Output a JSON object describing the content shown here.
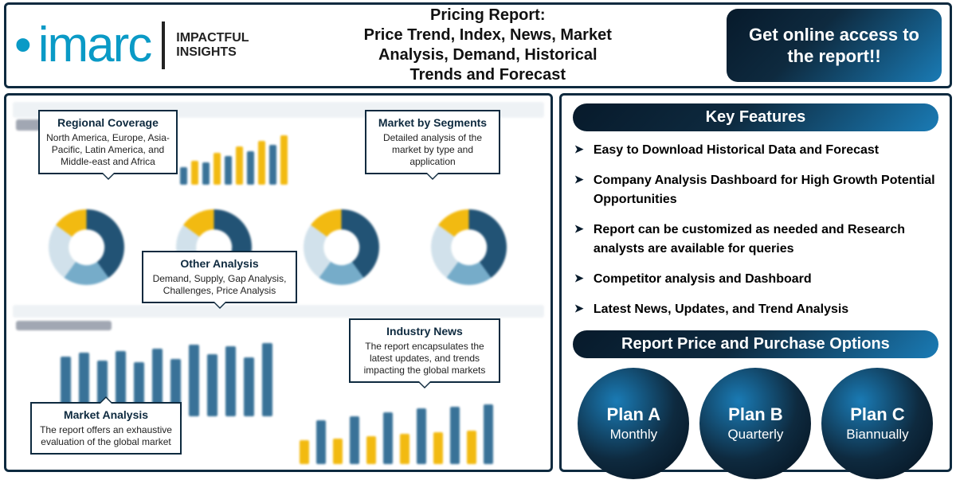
{
  "brand": {
    "logo_text": "imarc",
    "tagline_l1": "IMPACTFUL",
    "tagline_l2": "INSIGHTS"
  },
  "header": {
    "title_l1": "Pricing Report:",
    "title_l2": "Price Trend, Index, News, Market",
    "title_l3": "Analysis, Demand, Historical",
    "title_l4": "Trends and Forecast",
    "cta": "Get online access to the report!!"
  },
  "colors": {
    "border": "#0e2a3f",
    "accent": "#1a7bb5",
    "brand_blue": "#0a9ac6",
    "donut_dark": "#174a6e",
    "donut_mid": "#6fa8c7",
    "donut_light": "#cfe0ea",
    "donut_yellow": "#f2b705",
    "bar_blue": "#2f6b93",
    "bar_yellow": "#f2b705"
  },
  "callouts": {
    "regional": {
      "title": "Regional Coverage",
      "body": "North America, Europe, Asia-Pacific, Latin America, and Middle-east and Africa"
    },
    "segments": {
      "title": "Market by Segments",
      "body": "Detailed analysis of the market by type and application"
    },
    "other": {
      "title": "Other Analysis",
      "body": "Demand, Supply, Gap Analysis, Challenges, Price Analysis"
    },
    "news": {
      "title": "Industry News",
      "body": "The report encapsulates the latest updates, and trends impacting the global markets"
    },
    "market": {
      "title": "Market Analysis",
      "body": "The report offers an exhaustive evaluation of the global market"
    }
  },
  "dashboard": {
    "bar_small": {
      "type": "bar",
      "values": [
        22,
        30,
        28,
        40,
        36,
        48,
        42,
        55,
        50,
        62
      ],
      "colors": [
        "#2f6b93",
        "#f2b705",
        "#2f6b93",
        "#f2b705",
        "#2f6b93",
        "#f2b705",
        "#2f6b93",
        "#f2b705",
        "#2f6b93",
        "#f2b705"
      ]
    },
    "donuts": {
      "type": "donut_row",
      "count": 4,
      "slices_pct": [
        40,
        20,
        25,
        15
      ],
      "slice_colors": [
        "#174a6e",
        "#6fa8c7",
        "#cfe0ea",
        "#f2b705"
      ],
      "hole_pct": 48
    },
    "bar_big": {
      "type": "bar",
      "values": [
        75,
        80,
        70,
        82,
        68,
        85,
        72,
        90,
        78,
        88,
        74,
        92
      ],
      "color": "#2f6b93"
    },
    "bar_mixed": {
      "type": "bar",
      "values": [
        30,
        55,
        32,
        60,
        35,
        65,
        38,
        70,
        40,
        72,
        42,
        75
      ],
      "colors": [
        "#f2b705",
        "#2f6b93",
        "#f2b705",
        "#2f6b93",
        "#f2b705",
        "#2f6b93",
        "#f2b705",
        "#2f6b93",
        "#f2b705",
        "#2f6b93",
        "#f2b705",
        "#2f6b93"
      ]
    }
  },
  "right": {
    "features_heading": "Key Features",
    "features": [
      "Easy to Download Historical Data and Forecast",
      "Company Analysis Dashboard for High Growth Potential Opportunities",
      "Report can be customized as needed and Research analysts are available for queries",
      "Competitor analysis and Dashboard",
      "Latest News, Updates, and Trend Analysis"
    ],
    "pricing_heading": "Report Price and Purchase Options",
    "plans": [
      {
        "name": "Plan A",
        "freq": "Monthly"
      },
      {
        "name": "Plan B",
        "freq": "Quarterly"
      },
      {
        "name": "Plan C",
        "freq": "Biannually"
      }
    ]
  }
}
